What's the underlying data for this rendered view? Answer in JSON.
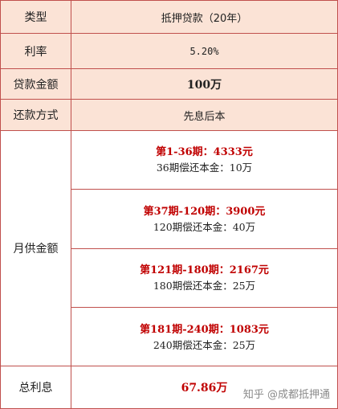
{
  "rows": [
    {
      "label": "类型",
      "value": "抵押贷款（20年）"
    },
    {
      "label": "利率",
      "value": "5.20%"
    },
    {
      "label": "贷款金额",
      "value": "100万"
    },
    {
      "label": "还款方式",
      "value": "先息后本"
    }
  ],
  "monthly": {
    "label": "月供金额",
    "periods": [
      {
        "headline": "第1-36期：4333元",
        "detail": "36期偿还本金：10万"
      },
      {
        "headline": "第37期-120期：3900元",
        "detail": "120期偿还本金：40万"
      },
      {
        "headline": "第121期-180期：2167元",
        "detail": "180期偿还本金：25万"
      },
      {
        "headline": "第181期-240期：1083元",
        "detail": "240期偿还本金：25万"
      }
    ]
  },
  "interest": {
    "label": "总利息",
    "value": "67.86万"
  },
  "watermark": "知乎 @成都抵押通",
  "colors": {
    "header_fill": "#fbe3d6",
    "border": "#c0504d",
    "highlight_text": "#c00000"
  }
}
